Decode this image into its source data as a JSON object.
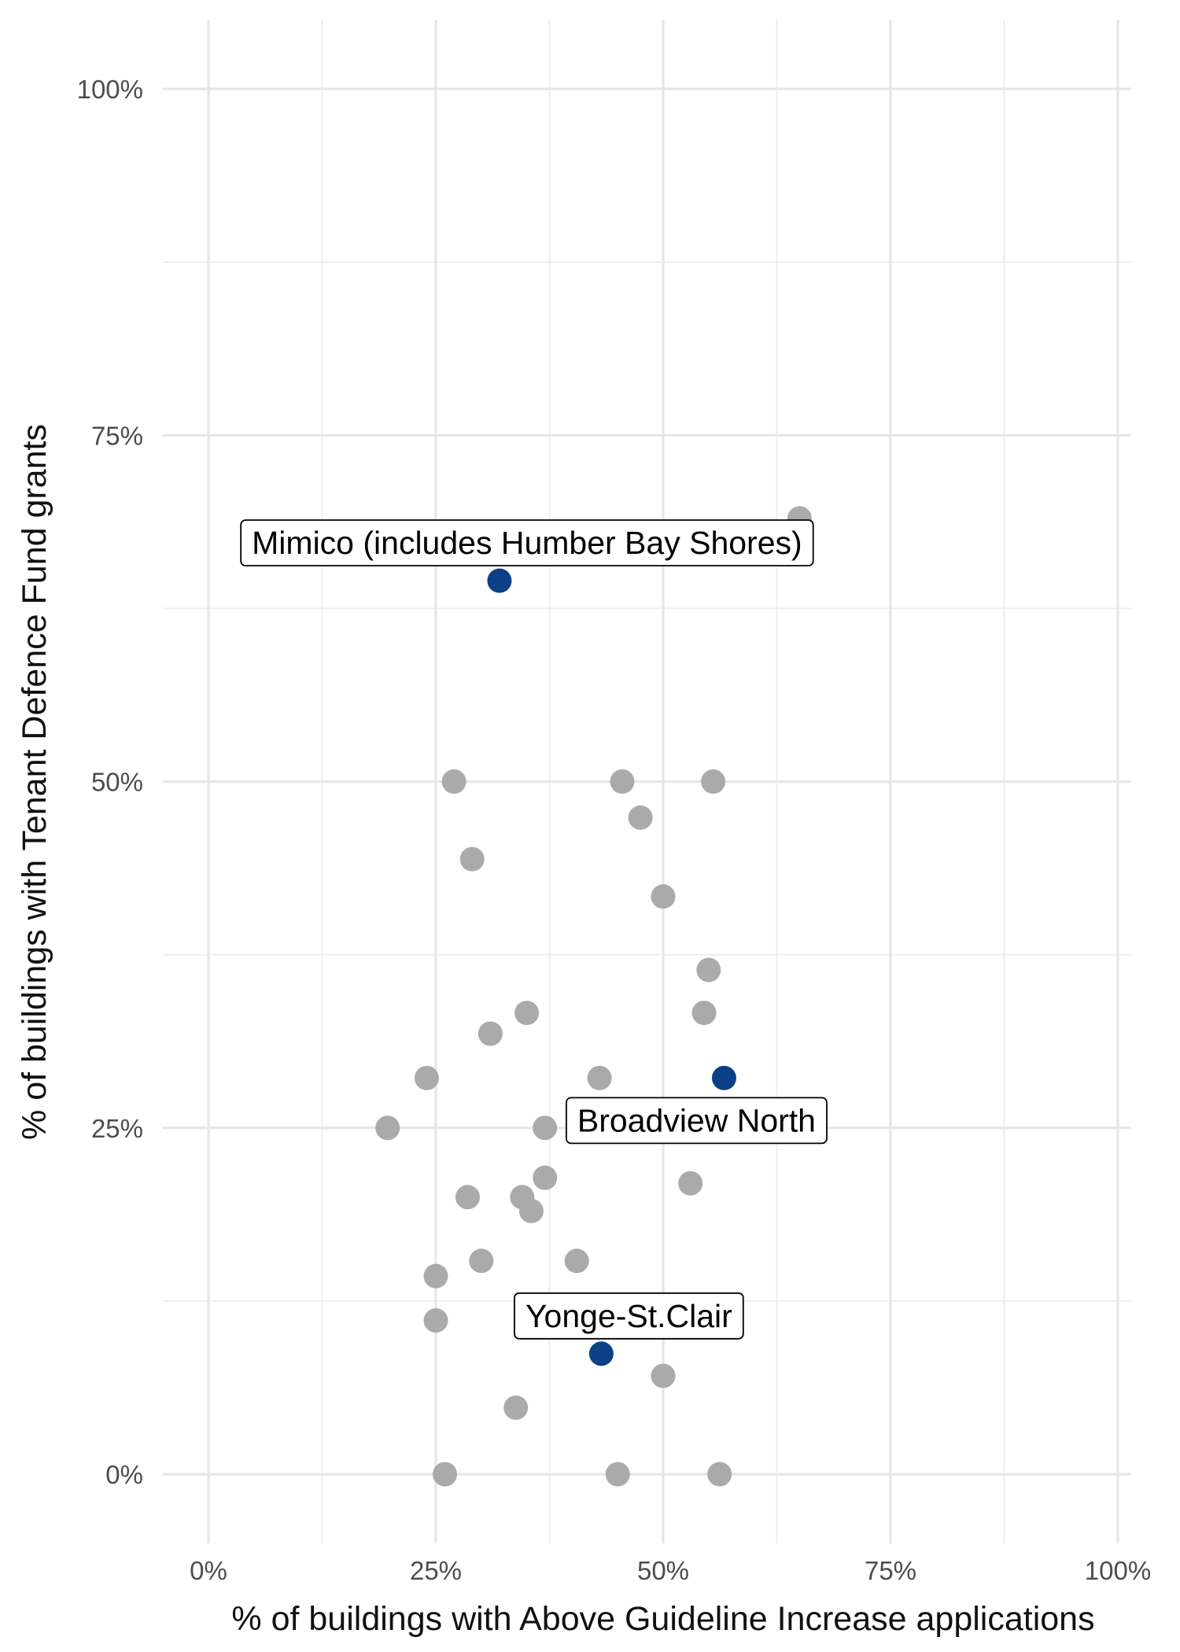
{
  "chart_data": {
    "type": "scatter",
    "title": "",
    "xlabel": "% of buildings with Above Guideline Increase applications",
    "ylabel": "% of buildings with Tenant Defence Fund grants",
    "xlim": [
      0,
      1
    ],
    "ylim": [
      0,
      1
    ],
    "x_ticks": [
      0,
      0.25,
      0.5,
      0.75,
      1
    ],
    "y_ticks": [
      0,
      0.25,
      0.5,
      0.75,
      1
    ],
    "x_tick_labels": [
      "0%",
      "25%",
      "50%",
      "75%",
      "100%"
    ],
    "y_tick_labels": [
      "0%",
      "25%",
      "50%",
      "75%",
      "100%"
    ],
    "grid": true,
    "legend": "none",
    "colors": {
      "other": "#aaaaaa",
      "highlight": "#0b3f86"
    },
    "points": [
      {
        "x": 0.65,
        "y": 0.69
      },
      {
        "x": 0.27,
        "y": 0.5
      },
      {
        "x": 0.455,
        "y": 0.5
      },
      {
        "x": 0.555,
        "y": 0.5
      },
      {
        "x": 0.475,
        "y": 0.474
      },
      {
        "x": 0.29,
        "y": 0.444
      },
      {
        "x": 0.5,
        "y": 0.417
      },
      {
        "x": 0.55,
        "y": 0.364
      },
      {
        "x": 0.35,
        "y": 0.333
      },
      {
        "x": 0.545,
        "y": 0.333
      },
      {
        "x": 0.31,
        "y": 0.318
      },
      {
        "x": 0.24,
        "y": 0.286
      },
      {
        "x": 0.43,
        "y": 0.286
      },
      {
        "x": 0.197,
        "y": 0.25
      },
      {
        "x": 0.37,
        "y": 0.25
      },
      {
        "x": 0.37,
        "y": 0.214
      },
      {
        "x": 0.53,
        "y": 0.21
      },
      {
        "x": 0.285,
        "y": 0.2
      },
      {
        "x": 0.345,
        "y": 0.2
      },
      {
        "x": 0.355,
        "y": 0.19
      },
      {
        "x": 0.3,
        "y": 0.154
      },
      {
        "x": 0.405,
        "y": 0.154
      },
      {
        "x": 0.25,
        "y": 0.143
      },
      {
        "x": 0.25,
        "y": 0.111
      },
      {
        "x": 0.5,
        "y": 0.071
      },
      {
        "x": 0.338,
        "y": 0.048
      },
      {
        "x": 0.26,
        "y": 0.0
      },
      {
        "x": 0.45,
        "y": 0.0
      },
      {
        "x": 0.562,
        "y": 0.0
      }
    ],
    "highlighted": [
      {
        "name": "Mimico (includes Humber Bay Shores)",
        "x": 0.32,
        "y": 0.645
      },
      {
        "name": "Broadview North",
        "x": 0.567,
        "y": 0.286
      },
      {
        "name": "Yonge-St.Clair",
        "x": 0.432,
        "y": 0.087
      }
    ]
  }
}
